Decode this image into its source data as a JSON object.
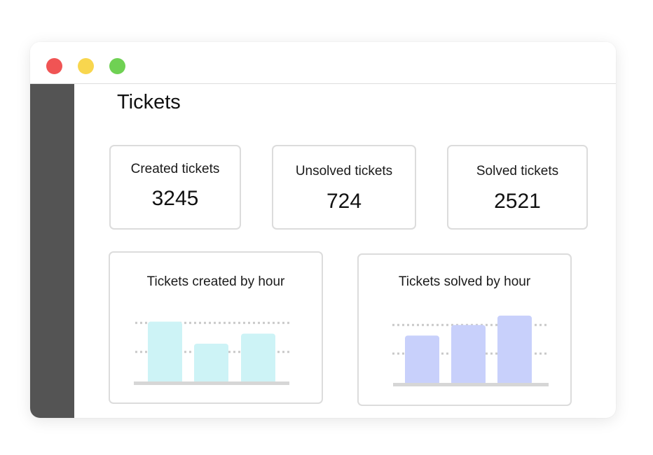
{
  "window": {
    "controls": {
      "close_color": "#f05454",
      "minimize_color": "#f8d64e",
      "maximize_color": "#6fd153"
    }
  },
  "page": {
    "title": "Tickets"
  },
  "stats": [
    {
      "label": "Created tickets",
      "value": "3245"
    },
    {
      "label": "Unsolved tickets",
      "value": "724"
    },
    {
      "label": "Solved tickets",
      "value": "2521"
    }
  ],
  "chart_data": [
    {
      "type": "bar",
      "title": "Tickets created by hour",
      "values": [
        0.95,
        0.6,
        0.76
      ],
      "gridlines": [
        0.93,
        0.47
      ],
      "color": "#cdf3f6"
    },
    {
      "type": "bar",
      "title": "Tickets solved by hour",
      "values": [
        0.76,
        0.93,
        1.08
      ],
      "gridlines": [
        0.93,
        0.47
      ],
      "color": "#c8d0fb"
    }
  ]
}
